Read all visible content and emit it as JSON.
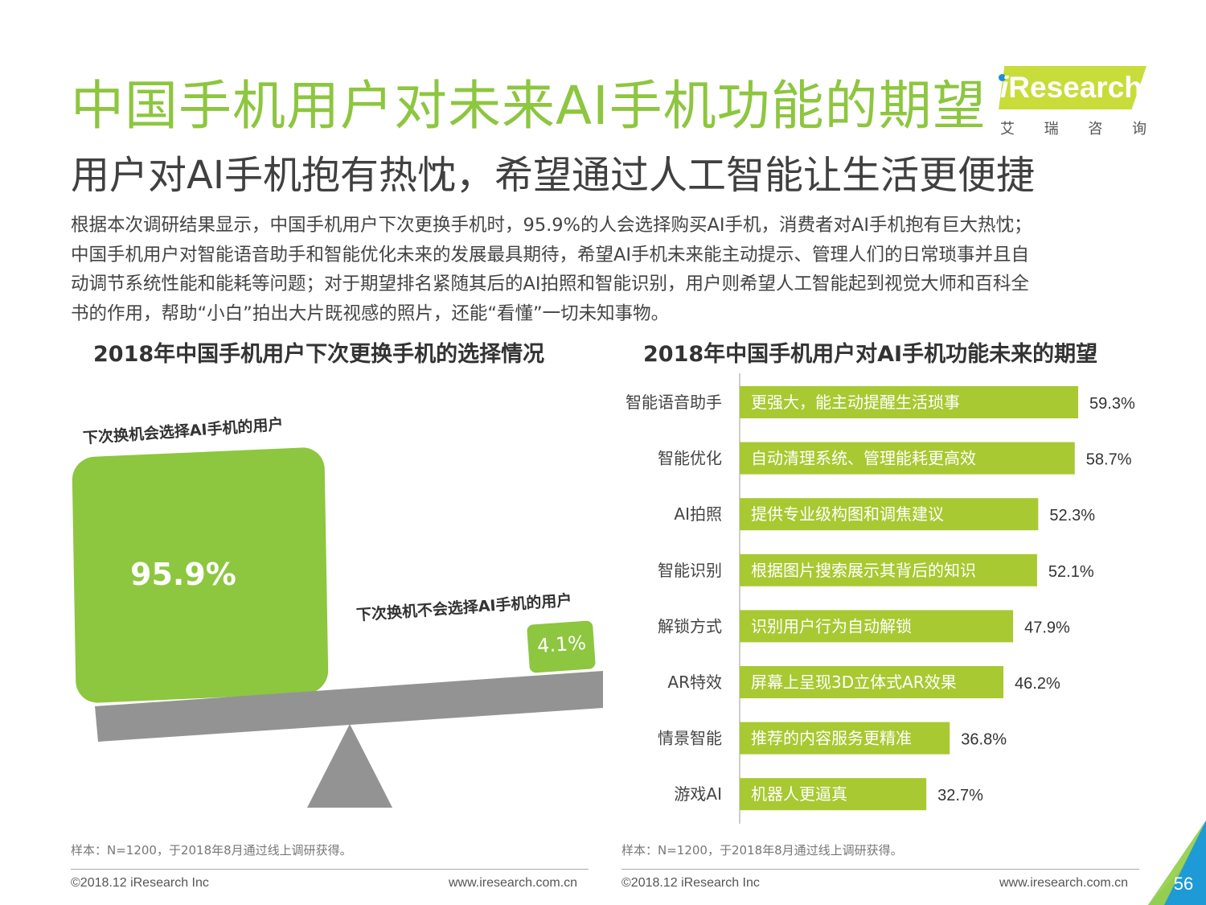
{
  "header": {
    "title": "中国手机用户对未来AI手机功能的期望",
    "subtitle": "用户对AI手机抱有热忱，希望通过人工智能让生活更便捷",
    "logo_text": "Research",
    "logo_cn": [
      "艾",
      "瑞",
      "咨",
      "询"
    ]
  },
  "intro": [
    "根据本次调研结果显示，中国手机用户下次更换手机时，95.9%的人会选择购买AI手机，消费者对AI手机抱有巨大热忱；",
    "中国手机用户对智能语音助手和智能优化未来的发展最具期待，希望AI手机未来能主动提示、管理人们的日常琐事并且自",
    "动调节系统性能和能耗等问题；对于期望排名紧随其后的AI拍照和智能识别，用户则希望人工智能起到视觉大师和百科全",
    "书的作用，帮助“小白”拍出大片既视感的照片，还能“看懂”一切未知事物。"
  ],
  "chart_data": [
    {
      "type": "bar",
      "title": "2018年中国手机用户下次更换手机的选择情况",
      "categories": [
        "下次换机会选择AI手机的用户",
        "下次换机不会选择AI手机的用户"
      ],
      "values": [
        95.9,
        4.1
      ],
      "value_labels": [
        "95.9%",
        "4.1%"
      ],
      "unit": "%"
    },
    {
      "type": "bar",
      "orientation": "horizontal",
      "title": "2018年中国手机用户对AI手机功能未来的期望",
      "categories": [
        "智能语音助手",
        "智能优化",
        "AI拍照",
        "智能识别",
        "解锁方式",
        "AR特效",
        "情景智能",
        "游戏AI"
      ],
      "descriptions": [
        "更强大，能主动提醒生活琐事",
        "自动清理系统、管理能耗更高效",
        "提供专业级构图和调焦建议",
        "根据图片搜索展示其背后的知识",
        "识别用户行为自动解锁",
        "屏幕上呈现3D立体式AR效果",
        "推荐的内容服务更精准",
        "机器人更逼真"
      ],
      "values": [
        59.3,
        58.7,
        52.3,
        52.1,
        47.9,
        46.2,
        36.8,
        32.7
      ],
      "value_labels": [
        "59.3%",
        "58.7%",
        "52.3%",
        "52.1%",
        "47.9%",
        "46.2%",
        "36.8%",
        "32.7%"
      ],
      "unit": "%",
      "color": "#a8c932"
    }
  ],
  "footer": {
    "left_note": "样本：N=1200，于2018年8月通过线上调研获得。",
    "right_note": "样本：N=1200，于2018年8月通过线上调研获得。",
    "copyright": "©2018.12 iResearch Inc",
    "website": "www.iresearch.com.cn",
    "page_number": "56"
  },
  "colors": {
    "title_green": "#8dc63f",
    "bar_green": "#a8c932",
    "beam_gray": "#939393",
    "corner_blue": "#1e9ad6"
  }
}
